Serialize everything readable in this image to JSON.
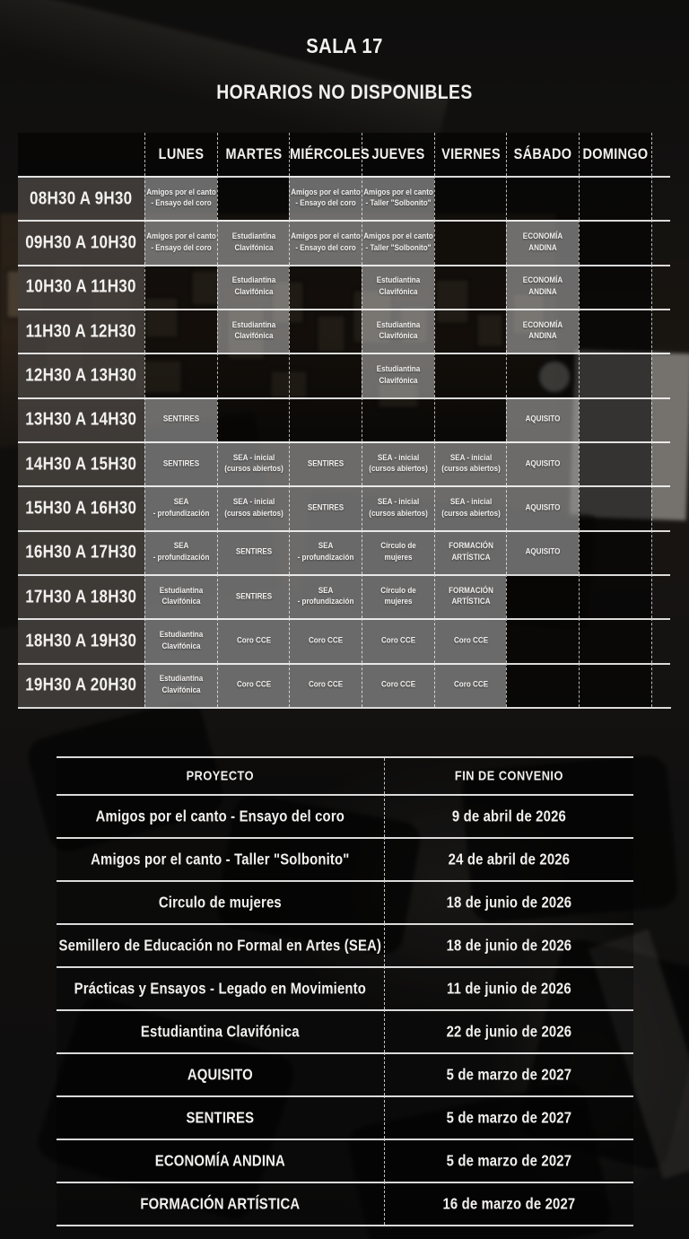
{
  "title": "SALA 17",
  "subtitle": "HORARIOS NO DISPONIBLES",
  "colors": {
    "line": "#ffffff",
    "text": "#f2f1ef",
    "cell_highlight": "#8a8680",
    "background": "#1a1918"
  },
  "schedule": {
    "days": [
      "LUNES",
      "MARTES",
      "MIÉRCOLES",
      "JUEVES",
      "VIERNES",
      "SÁBADO",
      "DOMINGO"
    ],
    "rows": [
      {
        "time": "08H30 A 9H30",
        "cells": [
          "Amigos por el canto\n- Ensayo del coro",
          "",
          "Amigos por el canto\n- Ensayo del coro",
          "Amigos por el canto\n- Taller \"Solbonito\"",
          "",
          "",
          ""
        ]
      },
      {
        "time": "09H30 A 10H30",
        "cells": [
          "Amigos por el canto\n- Ensayo del coro",
          "Estudiantina\nClavifónica",
          "Amigos por el canto\n- Ensayo del coro",
          "Amigos por el canto\n- Taller \"Solbonito\"",
          "",
          "ECONOMÍA\nANDINA",
          ""
        ]
      },
      {
        "time": "10H30 A 11H30",
        "cells": [
          "",
          "Estudiantina\nClavifónica",
          "",
          "Estudiantina\nClavifónica",
          "",
          "ECONOMÍA\nANDINA",
          ""
        ]
      },
      {
        "time": "11H30 A 12H30",
        "cells": [
          "",
          "Estudiantina\nClavifónica",
          "",
          "Estudiantina\nClavifónica",
          "",
          "ECONOMÍA\nANDINA",
          ""
        ]
      },
      {
        "time": "12H30 A 13H30",
        "cells": [
          "",
          "",
          "",
          "Estudiantina\nClavifónica",
          "",
          "",
          ""
        ]
      },
      {
        "time": "13H30 A 14H30",
        "cells": [
          "SENTIRES",
          "",
          "",
          "",
          "",
          "AQUISITO",
          ""
        ]
      },
      {
        "time": "14H30 A 15H30",
        "cells": [
          "SENTIRES",
          "SEA - inicial\n(cursos abiertos)",
          "SENTIRES",
          "SEA - inicial\n(cursos abiertos)",
          "SEA - inicial\n(cursos abiertos)",
          "AQUISITO",
          ""
        ]
      },
      {
        "time": "15H30 A 16H30",
        "cells": [
          "SEA\n- profundización",
          "SEA - inicial\n(cursos abiertos)",
          "SENTIRES",
          "SEA - inicial\n(cursos abiertos)",
          "SEA - inicial\n(cursos abiertos)",
          "AQUISITO",
          ""
        ]
      },
      {
        "time": "16H30 A 17H30",
        "cells": [
          "SEA\n- profundización",
          "SENTIRES",
          "SEA\n- profundización",
          "Círculo de\nmujeres",
          "FORMACIÓN\nARTÍSTICA",
          "AQUISITO",
          ""
        ]
      },
      {
        "time": "17H30 A 18H30",
        "cells": [
          "Estudiantina\nClavifónica",
          "SENTIRES",
          "SEA\n- profundización",
          "Círculo de\nmujeres",
          "FORMACIÓN\nARTÍSTICA",
          "",
          ""
        ]
      },
      {
        "time": "18H30 A 19H30",
        "cells": [
          "Estudiantina\nClavifónica",
          "Coro CCE",
          "Coro CCE",
          "Coro CCE",
          "Coro CCE",
          "",
          ""
        ]
      },
      {
        "time": "19H30 A 20H30",
        "cells": [
          "Estudiantina\nClavifónica",
          "Coro CCE",
          "Coro CCE",
          "Coro CCE",
          "Coro CCE",
          "",
          ""
        ]
      }
    ]
  },
  "projects": {
    "headers": [
      "PROYECTO",
      "FIN DE CONVENIO"
    ],
    "rows": [
      {
        "name": "Amigos por el canto - Ensayo del coro",
        "date": "9 de abril de 2026"
      },
      {
        "name": "Amigos por el canto - Taller \"Solbonito\"",
        "date": "24 de abril de 2026"
      },
      {
        "name": "Circulo de mujeres",
        "date": "18 de junio de 2026"
      },
      {
        "name": "Semillero de Educación no Formal en Artes (SEA)",
        "date": "18 de junio de 2026"
      },
      {
        "name": "Prácticas y Ensayos - Legado en Movimiento",
        "date": "11 de junio de 2026"
      },
      {
        "name": "Estudiantina Clavifónica",
        "date": "22 de junio de 2026"
      },
      {
        "name": "AQUISITO",
        "date": "5 de marzo de 2027"
      },
      {
        "name": "SENTIRES",
        "date": "5 de marzo de 2027"
      },
      {
        "name": "ECONOMÍA ANDINA",
        "date": "5 de marzo de 2027"
      },
      {
        "name": "FORMACIÓN ARTÍSTICA",
        "date": "16 de marzo de 2027"
      }
    ]
  }
}
